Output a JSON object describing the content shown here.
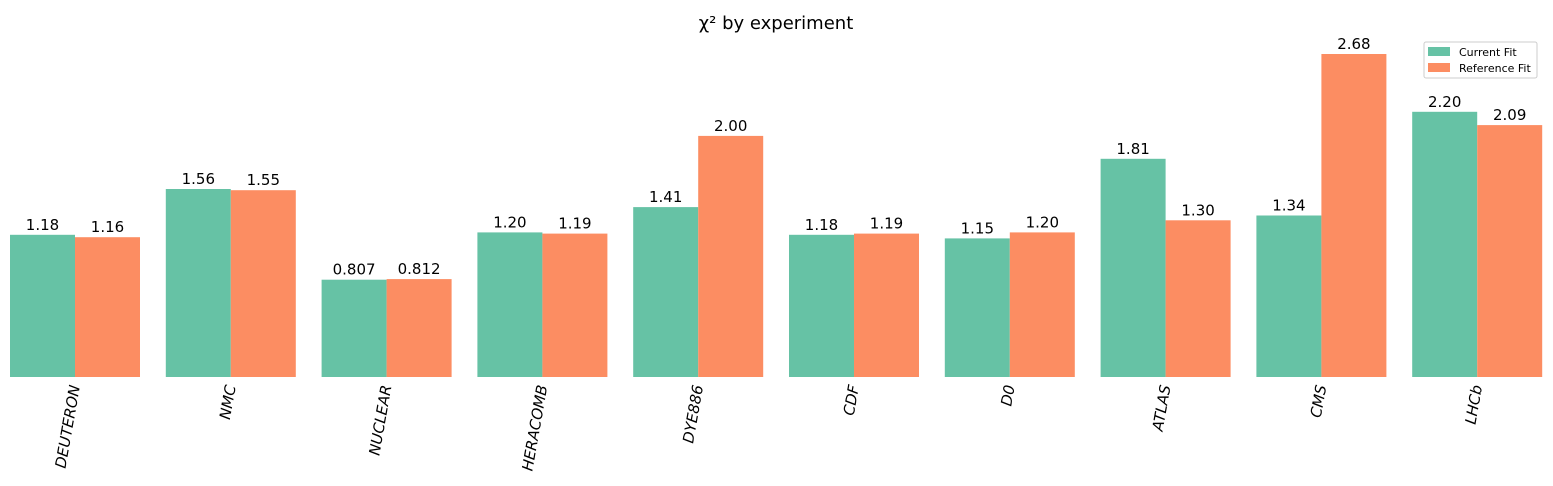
{
  "chart_data": {
    "type": "bar",
    "title": "χ² by experiment",
    "xlabel": "",
    "ylabel": "",
    "categories": [
      "DEUTERON",
      "NMC",
      "NUCLEAR",
      "HERACOMB",
      "DYE886",
      "CDF",
      "D0",
      "ATLAS",
      "CMS",
      "LHCb"
    ],
    "series": [
      {
        "name": "Current Fit",
        "color": "#66c2a5",
        "values": [
          1.18,
          1.56,
          0.807,
          1.2,
          1.41,
          1.18,
          1.15,
          1.81,
          1.34,
          2.2
        ],
        "labels": [
          "1.18",
          "1.56",
          "0.807",
          "1.20",
          "1.41",
          "1.18",
          "1.15",
          "1.81",
          "1.34",
          "2.20"
        ]
      },
      {
        "name": "Reference Fit",
        "color": "#fc8d62",
        "values": [
          1.16,
          1.55,
          0.812,
          1.19,
          2.0,
          1.19,
          1.2,
          1.3,
          2.68,
          2.09
        ],
        "labels": [
          "1.16",
          "1.55",
          "0.812",
          "1.19",
          "2.00",
          "1.19",
          "1.20",
          "1.30",
          "2.68",
          "2.09"
        ]
      }
    ],
    "ylim": [
      0,
      2.81
    ],
    "grid": false,
    "axes_visible": false,
    "tick_label_rotation": 80,
    "legend": {
      "placement": "top-right"
    }
  }
}
